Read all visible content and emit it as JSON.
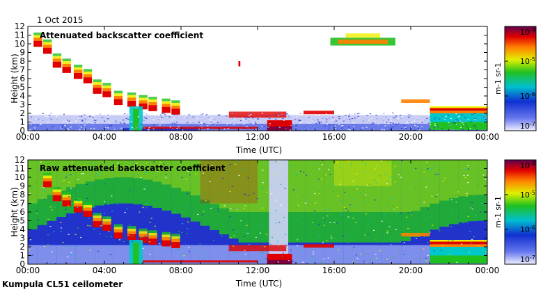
{
  "date_label": "1 Oct 2015",
  "footer": "Kumpula CL51 ceilometer",
  "chart_data": [
    {
      "type": "heatmap",
      "title": "Attenuated backscatter coefficient",
      "xlabel": "Time (UTC)",
      "ylabel": "Height (km)",
      "x_ticks": [
        "00:00",
        "04:00",
        "08:00",
        "12:00",
        "16:00",
        "20:00",
        "00:00"
      ],
      "y_ticks": [
        0,
        1,
        2,
        3,
        4,
        5,
        6,
        7,
        8,
        9,
        10,
        11,
        12
      ],
      "xlim_hours": [
        0,
        24
      ],
      "ylim": [
        0,
        12
      ],
      "colorbar": {
        "label": "m-1 sr-1",
        "scale": "log",
        "range": [
          1e-07,
          0.0001
        ],
        "tick_labels": [
          "10-7",
          "10-6",
          "10-5",
          "10-4"
        ]
      },
      "features": [
        {
          "name": "surface-layer",
          "t": [
            0,
            24
          ],
          "h": [
            0,
            1.8
          ]
        },
        {
          "name": "descending-cloud",
          "t": [
            0.2,
            7.5
          ],
          "h_start": 10.0,
          "h_end": 2.5
        },
        {
          "name": "fog-precipitation",
          "t": [
            12.5,
            13.8
          ],
          "h": [
            0,
            1.2
          ]
        },
        {
          "name": "cirrus",
          "t": [
            15.8,
            19.2
          ],
          "h": [
            9.3,
            11.3
          ]
        },
        {
          "name": "low-cloud-end",
          "t": [
            21.0,
            24.0
          ],
          "h": [
            0,
            2.7
          ]
        }
      ]
    },
    {
      "type": "heatmap",
      "title": "Raw attenuated backscatter coefficient",
      "xlabel": "Time (UTC)",
      "ylabel": "Height (km)",
      "x_ticks": [
        "00:00",
        "04:00",
        "08:00",
        "12:00",
        "16:00",
        "20:00",
        "00:00"
      ],
      "y_ticks": [
        0,
        1,
        2,
        3,
        4,
        5,
        6,
        7,
        8,
        9,
        10,
        11,
        12
      ],
      "xlim_hours": [
        0,
        24
      ],
      "ylim": [
        0,
        12
      ],
      "colorbar": {
        "label": "m-1 sr-1",
        "scale": "log",
        "range": [
          1e-07,
          0.0001
        ],
        "tick_labels": [
          "10-7",
          "10-6",
          "10-5",
          "10-4"
        ]
      },
      "features": [
        {
          "name": "noise-background",
          "t": [
            0,
            24
          ],
          "h": [
            0,
            12
          ]
        },
        {
          "name": "precipitation-column",
          "t": [
            12.6,
            13.6
          ],
          "h": [
            0,
            12
          ]
        },
        {
          "name": "low-cloud-end",
          "t": [
            21.0,
            24.0
          ],
          "h": [
            0,
            2.7
          ]
        }
      ]
    }
  ],
  "colors": {
    "low": "#d8dcff",
    "mid_blue": "#2233cc",
    "cyan": "#00c8c8",
    "green": "#20c020",
    "yellow": "#f0f000",
    "orange": "#ff8000",
    "red": "#e00000",
    "high": "#800040"
  }
}
